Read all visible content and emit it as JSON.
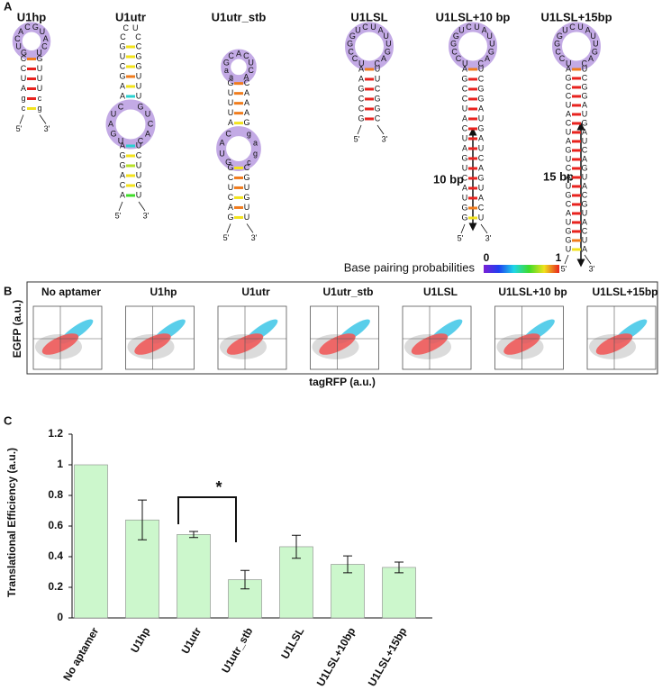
{
  "panel_a": {
    "label": "A",
    "legend": {
      "title": "Base pairing probabilities",
      "min": "0",
      "max": "1"
    },
    "arrows": [
      "10 bp",
      "15 bp"
    ],
    "structures": [
      {
        "title": "U1hp",
        "five_prime": "5'",
        "three_prime": "3'",
        "parts": [
          {
            "loop": [
              "G",
              "U",
              "C",
              "A",
              "C",
              "G",
              "U",
              "A",
              "C",
              "U"
            ],
            "highlight": true
          },
          {
            "left": [
              "C",
              "C",
              "U",
              "A",
              "g",
              "c"
            ],
            "right": [
              "G",
              "U",
              "U",
              "U",
              "c",
              "g"
            ],
            "colors": [
              "#f07c1d",
              "#e8231f",
              "#e8231f",
              "#e8231f",
              "#e8231f",
              "#f2e21d"
            ]
          }
        ]
      },
      {
        "title": "U1utr",
        "five_prime": "5'",
        "three_prime": "3'",
        "parts": [
          {
            "loop": [
              "C",
              "C",
              "U",
              "C"
            ],
            "highlight": false
          },
          {
            "left": [
              "G",
              "U",
              "C",
              "G",
              "A",
              "A"
            ],
            "right": [
              "C",
              "G",
              "G",
              "U",
              "U",
              "U"
            ],
            "colors": [
              "#f2e21d",
              "#f2e21d",
              "#f2e21d",
              "#f07c1d",
              "#f2e21d",
              "#2bd1d1"
            ]
          },
          {
            "iloop_left": [
              "C",
              "U",
              "A",
              "G",
              "U"
            ],
            "iloop_right": [
              "G",
              "U",
              "C",
              "A",
              "C"
            ],
            "highlight": true
          },
          {
            "left": [
              "A",
              "G",
              "G",
              "A",
              "C",
              "A"
            ],
            "right": [
              "U",
              "C",
              "U",
              "U",
              "G",
              "U"
            ],
            "colors": [
              "#2bd1d1",
              "#f2e21d",
              "#b7e02a",
              "#f2e21d",
              "#f2e21d",
              "#3fdc2a"
            ]
          }
        ]
      },
      {
        "title": "U1utr_stb",
        "five_prime": "5'",
        "three_prime": "3'",
        "parts": [
          {
            "loop": [
              "a",
              "a",
              "G",
              "C",
              "A",
              "C",
              "U",
              "C",
              "A"
            ],
            "highlight": true
          },
          {
            "left": [
              "G",
              "U",
              "U",
              "U",
              "A"
            ],
            "right": [
              "C",
              "A",
              "A",
              "A",
              "G"
            ],
            "colors": [
              "#f07c1d",
              "#f07c1d",
              "#f07c1d",
              "#f07c1d",
              "#f2e21d"
            ]
          },
          {
            "iloop_left": [
              "C",
              "A",
              "U",
              "G"
            ],
            "iloop_right": [
              "g",
              "a",
              "g",
              "c"
            ],
            "highlight": true
          },
          {
            "left": [
              "G",
              "C",
              "U",
              "C",
              "A",
              "G"
            ],
            "right": [
              "C",
              "G",
              "U",
              "G",
              "U",
              "U"
            ],
            "colors": [
              "#f2e21d",
              "#f07c1d",
              "#f07c1d",
              "#f2e21d",
              "#f07c1d",
              "#f2e21d"
            ]
          }
        ]
      },
      {
        "title": "U1LSL",
        "five_prime": "5'",
        "three_prime": "3'",
        "parts": [
          {
            "loop": [
              "U",
              "C",
              "C",
              "G",
              "G",
              "U",
              "C",
              "U",
              "A",
              "U",
              "U",
              "G",
              "A",
              "C"
            ],
            "highlight": true
          },
          {
            "left": [
              "A",
              "A",
              "G",
              "C",
              "C",
              "G"
            ],
            "right": [
              "U",
              "U",
              "C",
              "G",
              "G",
              "C"
            ],
            "colors": [
              "#f07c1d",
              "#e8231f",
              "#e8231f",
              "#e8231f",
              "#e8231f",
              "#e8231f"
            ]
          }
        ]
      },
      {
        "title": "U1LSL+10 bp",
        "five_prime": "5'",
        "three_prime": "3'",
        "parts": [
          {
            "loop": [
              "U",
              "C",
              "C",
              "G",
              "G",
              "U",
              "C",
              "U",
              "A",
              "U",
              "U",
              "G",
              "A",
              "C"
            ],
            "highlight": true
          },
          {
            "left": [
              "A",
              "G",
              "C",
              "C",
              "U",
              "A",
              "C",
              "U",
              "A",
              "G",
              "U",
              "C",
              "A",
              "U",
              "G",
              "G"
            ],
            "right": [
              "U",
              "C",
              "G",
              "G",
              "A",
              "U",
              "G",
              "A",
              "U",
              "C",
              "A",
              "G",
              "U",
              "A",
              "C",
              "U"
            ],
            "colors": [
              "#f07c1d",
              "#e8231f",
              "#e8231f",
              "#e8231f",
              "#e8231f",
              "#e8231f",
              "#e8231f",
              "#e8231f",
              "#e8231f",
              "#e8231f",
              "#e8231f",
              "#e8231f",
              "#e8231f",
              "#e8231f",
              "#f07c1d",
              "#f2e21d"
            ]
          }
        ]
      },
      {
        "title": "U1LSL+15bp",
        "five_prime": "5'",
        "three_prime": "3'",
        "parts": [
          {
            "loop": [
              "U",
              "C",
              "C",
              "G",
              "G",
              "U",
              "C",
              "U",
              "A",
              "U",
              "U",
              "G",
              "A",
              "C"
            ],
            "highlight": true
          },
          {
            "left": [
              "A",
              "G",
              "C",
              "C",
              "U",
              "A",
              "C",
              "U",
              "A",
              "G",
              "U",
              "C",
              "A",
              "U",
              "G",
              "C",
              "A",
              "U",
              "G",
              "G",
              "U"
            ],
            "right": [
              "U",
              "C",
              "G",
              "G",
              "A",
              "U",
              "G",
              "A",
              "U",
              "C",
              "A",
              "G",
              "U",
              "A",
              "C",
              "G",
              "U",
              "A",
              "C",
              "U",
              "A"
            ],
            "colors": [
              "#f07c1d",
              "#e8231f",
              "#e8231f",
              "#e8231f",
              "#e8231f",
              "#e8231f",
              "#e8231f",
              "#e8231f",
              "#e8231f",
              "#e8231f",
              "#e8231f",
              "#e8231f",
              "#e8231f",
              "#e8231f",
              "#e8231f",
              "#e8231f",
              "#e8231f",
              "#e8231f",
              "#e8231f",
              "#f07c1d",
              "#f2e21d"
            ]
          }
        ]
      }
    ]
  },
  "panel_b": {
    "label": "B",
    "y_label": "EGFP (a.u.)",
    "x_label": "tagRFP (a.u.)",
    "plots": [
      "No aptamer",
      "U1hp",
      "U1utr",
      "U1utr_stb",
      "U1LSL",
      "U1LSL+10 bp",
      "U1LSL+15bp"
    ]
  },
  "chart_data": {
    "type": "bar",
    "label": "C",
    "y_label": "Translational Efficiency (a.u.)",
    "annotation": "*",
    "categories": [
      "No aptamer",
      "U1hp",
      "U1utr",
      "U1utr_stb",
      "U1LSL",
      "U1LSL+10bp",
      "U1LSL+15bp"
    ],
    "values": [
      1,
      0.64,
      0.545,
      0.25,
      0.465,
      0.35,
      0.33
    ],
    "errors": [
      0,
      0.13,
      0.02,
      0.06,
      0.075,
      0.055,
      0.035
    ],
    "color": "#ccf7cc",
    "ylim": [
      0,
      1.2
    ],
    "yticks": [
      0,
      0.2,
      0.4,
      0.6,
      0.8,
      1,
      1.2
    ]
  }
}
